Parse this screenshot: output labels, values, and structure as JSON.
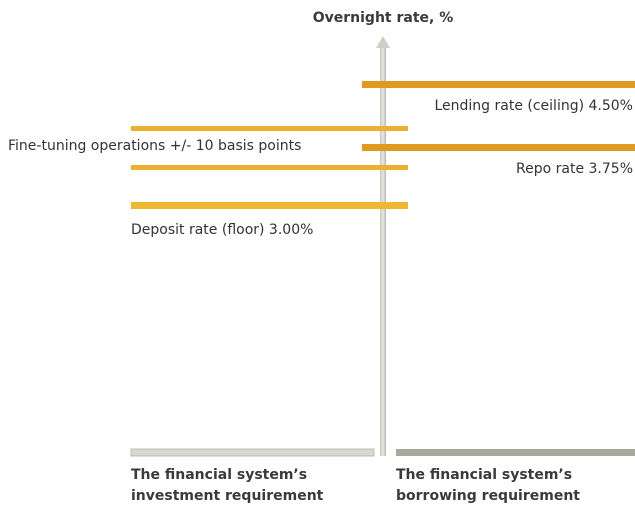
{
  "title": "Overnight rate, %",
  "labels": {
    "lending": "Lending rate (ceiling) 4.50%",
    "fine_tuning": "Fine-tuning operations +/- 10 basis points",
    "repo": "Repo rate 3.75%",
    "deposit": "Deposit rate (floor) 3.00%"
  },
  "footer": {
    "left": {
      "line1": "The financial system’s",
      "line2": "investment requirement"
    },
    "right": {
      "line1": "The financial system’s",
      "line2": "borrowing requirement"
    }
  }
}
